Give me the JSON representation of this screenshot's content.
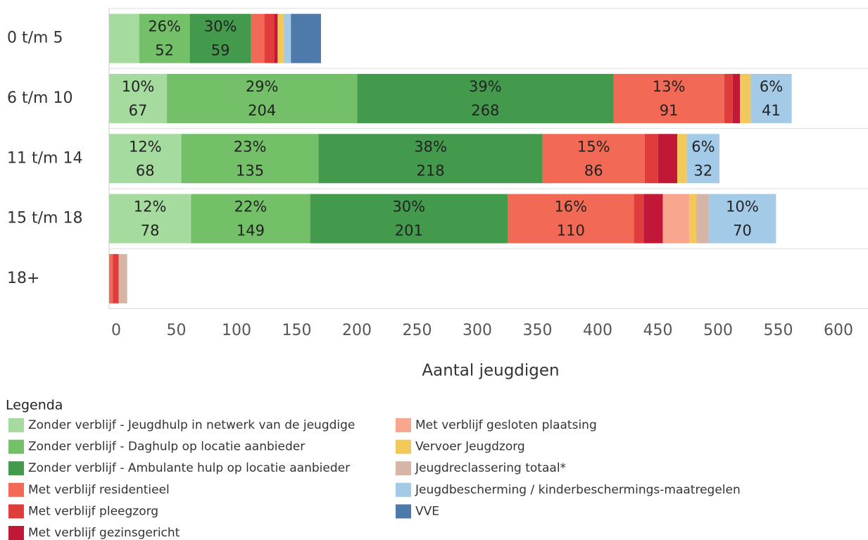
{
  "chart_data": {
    "type": "stacked-barh",
    "x_label": "Aantal jeugdigen",
    "legend_title": "Legenda",
    "categories": [
      "0 t/m 5",
      "6 t/m 10",
      "11 t/m 14",
      "15 t/m 18",
      "18+"
    ],
    "xlim": [
      0,
      630
    ],
    "xticks": [
      0,
      50,
      100,
      150,
      200,
      250,
      300,
      350,
      400,
      450,
      500,
      550,
      600
    ],
    "series": [
      {
        "name": "Zonder verblijf - Jeugdhulp in netwerk van de jeugdige",
        "color": "#a6dba0",
        "values": [
          25,
          48,
          60,
          68,
          0
        ],
        "percent_labels": [
          null,
          "10%",
          "12%",
          "12%",
          null
        ],
        "count_labels": [
          null,
          67,
          68,
          78,
          null
        ]
      },
      {
        "name": "Zonder verblijf - Daghulp op locatie aanbieder",
        "color": "#74c069",
        "values": [
          42,
          158,
          114,
          99,
          0
        ],
        "percent_labels": [
          "26%",
          "29%",
          "23%",
          "22%",
          null
        ],
        "count_labels": [
          52,
          204,
          135,
          149,
          null
        ]
      },
      {
        "name": "Zonder verblijf - Ambulante hulp op locatie aanbieder",
        "color": "#449a4c",
        "values": [
          51,
          213,
          186,
          164,
          0
        ],
        "percent_labels": [
          "30%",
          "39%",
          "38%",
          "30%",
          null
        ],
        "count_labels": [
          59,
          268,
          218,
          201,
          null
        ]
      },
      {
        "name": "Met verblijf residentieel",
        "color": "#f26a55",
        "values": [
          11,
          92,
          85,
          105,
          3
        ],
        "percent_labels": [
          null,
          "13%",
          "15%",
          "16%",
          null
        ],
        "count_labels": [
          null,
          91,
          86,
          110,
          null
        ]
      },
      {
        "name": "Met verblijf pleegzorg",
        "color": "#e03c3c",
        "values": [
          8,
          7,
          11,
          8,
          5
        ],
        "percent_labels": [
          null,
          null,
          null,
          null,
          null
        ],
        "count_labels": [
          null,
          null,
          null,
          null,
          null
        ]
      },
      {
        "name": "Met verblijf gezinsgericht",
        "color": "#c21838",
        "values": [
          3,
          6,
          16,
          16,
          0
        ],
        "percent_labels": [
          null,
          null,
          null,
          null,
          null
        ],
        "count_labels": [
          null,
          null,
          null,
          null,
          null
        ]
      },
      {
        "name": "Met verblijf gesloten plaatsing",
        "color": "#f9a68f",
        "values": [
          0,
          0,
          0,
          22,
          0
        ],
        "percent_labels": [
          null,
          null,
          null,
          null,
          null
        ],
        "count_labels": [
          null,
          null,
          null,
          null,
          null
        ]
      },
      {
        "name": "Vervoer Jeugdzorg",
        "color": "#f1c85a",
        "values": [
          5,
          9,
          8,
          6,
          0
        ],
        "percent_labels": [
          null,
          null,
          null,
          null,
          null
        ],
        "count_labels": [
          null,
          null,
          null,
          null,
          null
        ]
      },
      {
        "name": "Jeugdreclassering totaal*",
        "color": "#d6b4a6",
        "values": [
          0,
          0,
          0,
          10,
          7
        ],
        "percent_labels": [
          null,
          null,
          null,
          null,
          null
        ],
        "count_labels": [
          null,
          null,
          null,
          null,
          null
        ]
      },
      {
        "name": "Jeugdbescherming / kinderbeschermings-maatregelen",
        "color": "#a3cbe8",
        "values": [
          6,
          34,
          27,
          56,
          0
        ],
        "percent_labels": [
          null,
          "6%",
          "6%",
          "10%",
          null
        ],
        "count_labels": [
          null,
          41,
          32,
          70,
          null
        ]
      },
      {
        "name": "VVE",
        "color": "#4d7aaa",
        "values": [
          25,
          0,
          0,
          0,
          0
        ],
        "percent_labels": [
          null,
          null,
          null,
          null,
          null
        ],
        "count_labels": [
          null,
          null,
          null,
          null,
          null
        ]
      }
    ]
  }
}
